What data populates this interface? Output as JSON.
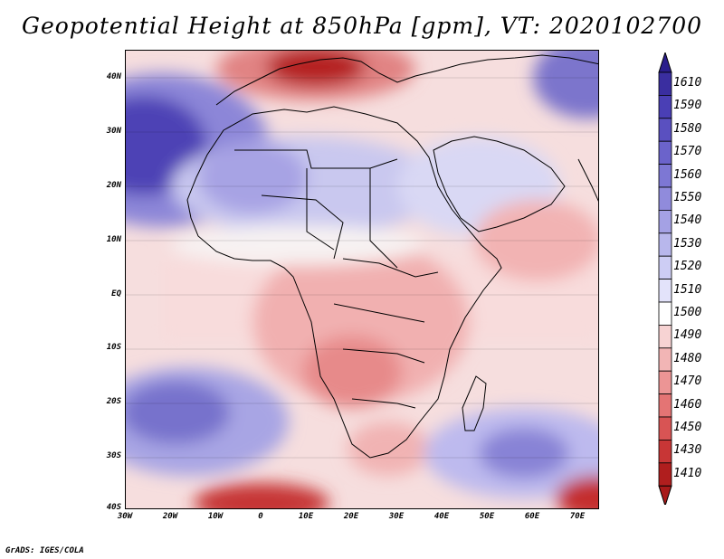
{
  "title": "Geopotential Height at 850hPa [gpm], VT: 2020102700",
  "footer": "GrADS: IGES/COLA",
  "map": {
    "lat_labels": [
      "40N",
      "30N",
      "20N",
      "10N",
      "EQ",
      "10S",
      "20S",
      "30S",
      "40S"
    ],
    "lon_labels": [
      "30W",
      "20W",
      "10W",
      "0",
      "10E",
      "20E",
      "30E",
      "40E",
      "50E",
      "60E",
      "70E"
    ]
  },
  "colorbar": {
    "labels": [
      "1610",
      "1590",
      "1580",
      "1570",
      "1560",
      "1550",
      "1540",
      "1530",
      "1520",
      "1510",
      "1500",
      "1490",
      "1480",
      "1470",
      "1460",
      "1450",
      "1430",
      "1410"
    ],
    "colors": [
      "#3a2ea0",
      "#4a3fb5",
      "#5a50c0",
      "#6b63cb",
      "#7d77d4",
      "#908bdc",
      "#a4a1e4",
      "#b8b7ec",
      "#cdcdf4",
      "#e3e3fa",
      "#ffffff",
      "#f7d3d3",
      "#f2b5b5",
      "#ec9595",
      "#e47474",
      "#d85454",
      "#c83636",
      "#b01e1e"
    ],
    "top_arrow_color": "#2a1d8c",
    "bottom_arrow_color": "#a81a1a"
  }
}
